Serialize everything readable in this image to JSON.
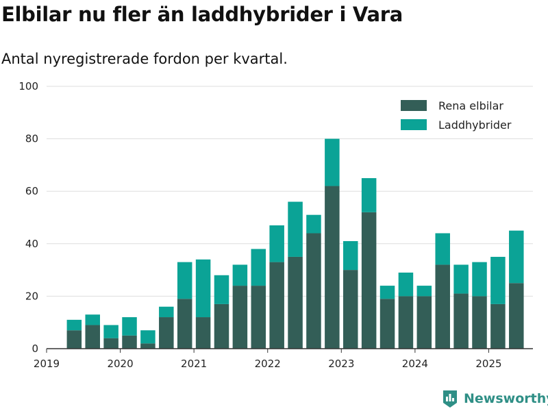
{
  "header": {
    "title": "Elbilar nu fler än laddhybrider i Vara",
    "subtitle": "Antal nyregistrerade fordon per kvartal."
  },
  "brand": {
    "name": "Newsworthy",
    "icon": "newsworthy-logo-icon"
  },
  "colors": {
    "series_0": "#335e57",
    "series_1": "#0ba396",
    "grid": "#dddddd",
    "axis": "#333333"
  },
  "chart_data": {
    "type": "bar",
    "stacked": true,
    "title": "Elbilar nu fler än laddhybrider i Vara",
    "subtitle": "Antal nyregistrerade fordon per kvartal.",
    "xlabel": "",
    "ylabel": "",
    "ylim": [
      0,
      100
    ],
    "yticks": [
      0,
      20,
      40,
      60,
      80,
      100
    ],
    "xticks": [
      "2019",
      "2020",
      "2021",
      "2022",
      "2023",
      "2024",
      "2025"
    ],
    "grid": true,
    "legend": "top-right",
    "categories": [
      "2019-Q2",
      "2019-Q3",
      "2019-Q4",
      "2020-Q1",
      "2020-Q2",
      "2020-Q3",
      "2020-Q4",
      "2021-Q1",
      "2021-Q2",
      "2021-Q3",
      "2021-Q4",
      "2022-Q1",
      "2022-Q2",
      "2022-Q3",
      "2022-Q4",
      "2023-Q1",
      "2023-Q2",
      "2023-Q3",
      "2023-Q4",
      "2024-Q1",
      "2024-Q2",
      "2024-Q3",
      "2024-Q4",
      "2025-Q1",
      "2025-Q2"
    ],
    "series": [
      {
        "name": "Rena elbilar",
        "values": [
          7,
          9,
          4,
          5,
          2,
          12,
          19,
          12,
          17,
          24,
          24,
          33,
          35,
          44,
          62,
          30,
          52,
          19,
          20,
          20,
          32,
          21,
          20,
          17,
          25
        ]
      },
      {
        "name": "Laddhybrider",
        "values": [
          4,
          4,
          5,
          7,
          5,
          4,
          14,
          22,
          11,
          8,
          14,
          14,
          21,
          7,
          18,
          11,
          13,
          5,
          9,
          4,
          12,
          11,
          13,
          18,
          20
        ]
      }
    ]
  }
}
